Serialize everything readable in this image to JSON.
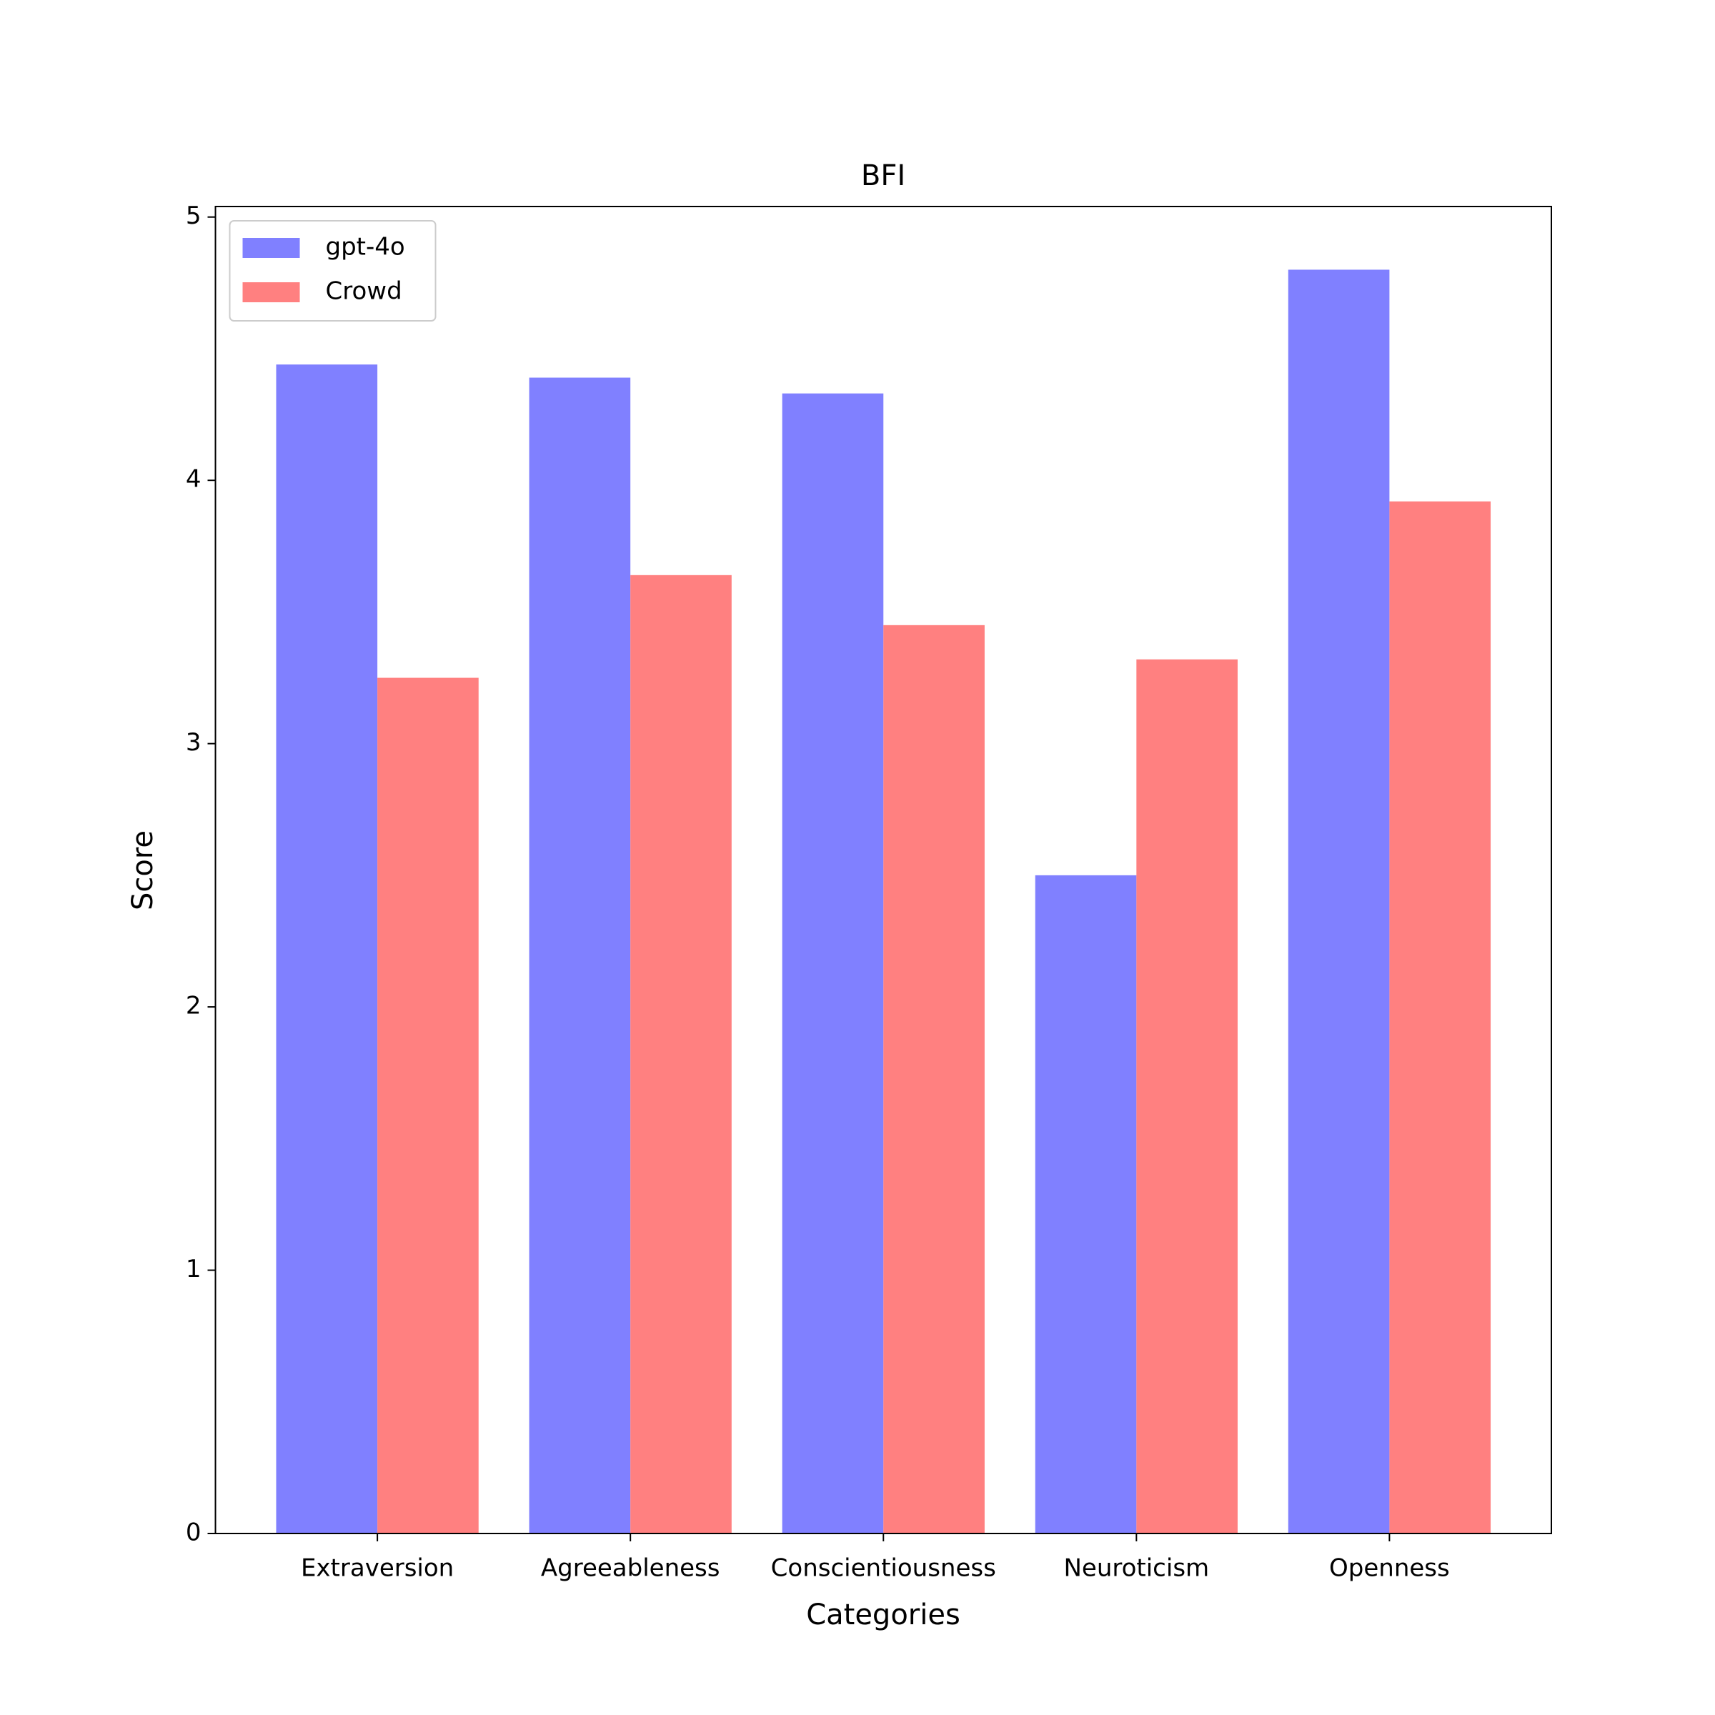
{
  "chart_data": {
    "type": "bar",
    "title": "BFI",
    "x_label": "Categories",
    "y_label": "Score",
    "categories": [
      "Extraversion",
      "Agreeableness",
      "Conscientiousness",
      "Neuroticism",
      "Openness"
    ],
    "series": [
      {
        "name": "gpt-4o",
        "color": "#8080ff",
        "values": [
          4.44,
          4.39,
          4.33,
          2.5,
          4.8
        ]
      },
      {
        "name": "Crowd",
        "color": "#ff8080",
        "values": [
          3.25,
          3.64,
          3.45,
          3.32,
          3.92
        ]
      }
    ],
    "ylim": [
      0,
      5.04
    ],
    "yticks": [
      0,
      1,
      2,
      3,
      4,
      5
    ],
    "grid": false,
    "legend": "upper left"
  }
}
